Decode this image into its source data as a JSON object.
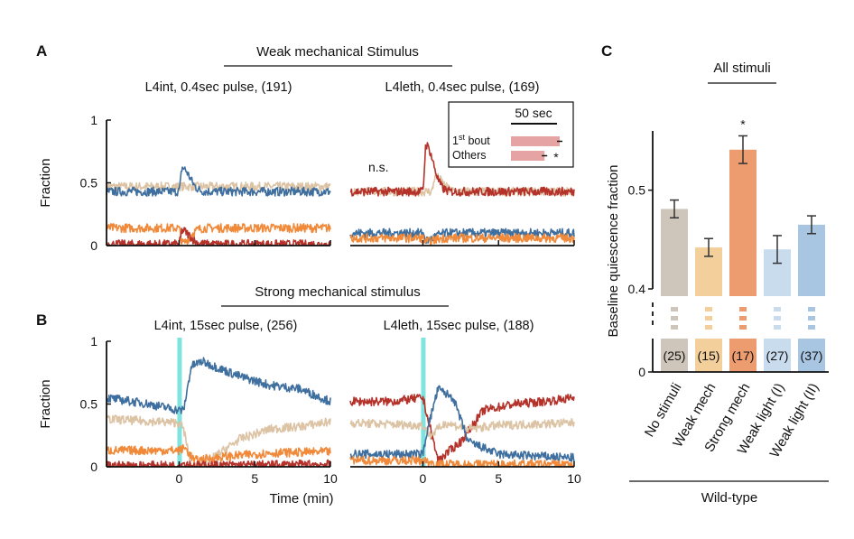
{
  "panel_letters": [
    "A",
    "B",
    "C"
  ],
  "headers": {
    "weak": "Weak mechanical Stimulus",
    "strong": "Strong mechanical stimulus",
    "all": "All stimuli"
  },
  "colors": {
    "wake": "#3f6f9e",
    "lethargus_sleep": "#b5322a",
    "tan": "#dcc3a4",
    "orange": "#f08a3a",
    "stim": "#7fe3df",
    "bars": [
      "#cfc6bb",
      "#f3cf9b",
      "#ec9c6f",
      "#c9dcee",
      "#a8c6e2"
    ]
  },
  "chart_data": [
    {
      "type": "line",
      "panel": "A",
      "title": "L4int, 0.4sec pulse, (191)",
      "ylabel": "Fraction",
      "xlabel": "",
      "xlim": [
        -4.8,
        10
      ],
      "ylim": [
        0,
        1
      ],
      "yticks": [
        "0",
        "0.5",
        "1"
      ],
      "xticks": [],
      "series": [
        {
          "color": "tan",
          "baseline": 0.47,
          "peak": [
            0.2,
            0.47
          ]
        },
        {
          "color": "wake",
          "baseline": 0.43,
          "peak": [
            0.2,
            0.62
          ]
        },
        {
          "color": "orange",
          "baseline": 0.14,
          "peak": [
            0.2,
            0.02
          ]
        },
        {
          "color": "lethargus_sleep",
          "baseline": 0.01,
          "peak": [
            0.2,
            0.12
          ]
        }
      ]
    },
    {
      "type": "line",
      "panel": "A",
      "title": "L4leth, 0.4sec pulse, (169)",
      "ylabel": "",
      "xlabel": "",
      "xlim": [
        -4.8,
        10
      ],
      "ylim": [
        0,
        1
      ],
      "yticks": [],
      "xticks": [],
      "annotation": "n.s.",
      "inset": {
        "scale_label": "50 sec",
        "rows": [
          {
            "label": "1st bout",
            "label_main": "1",
            "label_sup": "st",
            "label_rest": " bout",
            "value": 0.9,
            "sig": ""
          },
          {
            "label": "Others",
            "value": 0.62,
            "sig": "*"
          }
        ]
      },
      "series": [
        {
          "color": "tan",
          "baseline": 0.43,
          "peak": [
            0.8,
            0.55
          ]
        },
        {
          "color": "lethargus_sleep",
          "baseline": 0.43,
          "peak": [
            0.2,
            0.8
          ]
        },
        {
          "color": "wake",
          "baseline": 0.1,
          "peak": [
            0.2,
            0.04
          ]
        },
        {
          "color": "orange",
          "baseline": 0.06,
          "peak": [
            0.2,
            0.03
          ]
        }
      ]
    },
    {
      "type": "line",
      "panel": "B",
      "title": "L4int, 15sec pulse, (256)",
      "ylabel": "Fraction",
      "xlabel": "",
      "xlim": [
        -4.8,
        10
      ],
      "ylim": [
        0,
        1
      ],
      "yticks": [
        "0",
        "0.5",
        "1"
      ],
      "xticks": [
        "0",
        "5",
        "10"
      ],
      "stimulus_minutes": [
        0,
        0.25
      ],
      "series": [
        {
          "color": "wake",
          "points": [
            [
              -4.8,
              0.55
            ],
            [
              -2,
              0.5
            ],
            [
              0,
              0.45
            ],
            [
              0.3,
              0.45
            ],
            [
              0.8,
              0.8
            ],
            [
              1.5,
              0.84
            ],
            [
              4,
              0.72
            ],
            [
              6,
              0.65
            ],
            [
              8,
              0.62
            ],
            [
              10,
              0.52
            ]
          ]
        },
        {
          "color": "tan",
          "points": [
            [
              -4.8,
              0.38
            ],
            [
              0,
              0.35
            ],
            [
              0.3,
              0.3
            ],
            [
              0.8,
              0.0
            ],
            [
              2,
              0.05
            ],
            [
              4,
              0.22
            ],
            [
              6,
              0.3
            ],
            [
              8,
              0.32
            ],
            [
              10,
              0.36
            ]
          ]
        },
        {
          "color": "orange",
          "points": [
            [
              -4.8,
              0.13
            ],
            [
              0,
              0.13
            ],
            [
              0.4,
              0.15
            ],
            [
              1,
              0.05
            ],
            [
              3,
              0.08
            ],
            [
              6,
              0.11
            ],
            [
              10,
              0.12
            ]
          ]
        },
        {
          "color": "lethargus_sleep",
          "points": [
            [
              -4.8,
              0.01
            ],
            [
              0,
              0.01
            ],
            [
              0.3,
              0.03
            ],
            [
              1,
              0.01
            ],
            [
              10,
              0.02
            ]
          ]
        }
      ]
    },
    {
      "type": "line",
      "panel": "B",
      "title": "L4leth, 15sec pulse, (188)",
      "ylabel": "",
      "xlabel": "Time (min)",
      "xlim": [
        -4.8,
        10
      ],
      "ylim": [
        0,
        1
      ],
      "yticks": [],
      "xticks": [
        "0",
        "5",
        "10"
      ],
      "stimulus_minutes": [
        0,
        0.25
      ],
      "series": [
        {
          "color": "lethargus_sleep",
          "points": [
            [
              -4.8,
              0.52
            ],
            [
              -2,
              0.52
            ],
            [
              0,
              0.55
            ],
            [
              0.3,
              0.4
            ],
            [
              1,
              0.05
            ],
            [
              2.5,
              0.2
            ],
            [
              4,
              0.45
            ],
            [
              6,
              0.5
            ],
            [
              8,
              0.52
            ],
            [
              10,
              0.55
            ]
          ]
        },
        {
          "color": "tan",
          "points": [
            [
              -4.8,
              0.35
            ],
            [
              0,
              0.33
            ],
            [
              0.5,
              0.25
            ],
            [
              1.5,
              0.35
            ],
            [
              3,
              0.3
            ],
            [
              5,
              0.33
            ],
            [
              10,
              0.35
            ]
          ]
        },
        {
          "color": "wake",
          "points": [
            [
              -4.8,
              0.1
            ],
            [
              0,
              0.1
            ],
            [
              0.3,
              0.3
            ],
            [
              1,
              0.62
            ],
            [
              2,
              0.55
            ],
            [
              3,
              0.2
            ],
            [
              5,
              0.1
            ],
            [
              10,
              0.07
            ]
          ]
        },
        {
          "color": "orange",
          "points": [
            [
              -4.8,
              0.05
            ],
            [
              0,
              0.05
            ],
            [
              1,
              0.02
            ],
            [
              10,
              0.02
            ]
          ]
        }
      ]
    },
    {
      "type": "bar",
      "panel": "C",
      "title": "All stimuli",
      "ylabel": "Baseline quiescence fraction",
      "xlabel": "Wild-type",
      "categories": [
        "No stimuli",
        "Weak mech",
        "Strong mech",
        "Weak light (I)",
        "Weak light (II)"
      ],
      "values": [
        0.481,
        0.442,
        0.541,
        0.44,
        0.465
      ],
      "errors": [
        0.009,
        0.009,
        0.014,
        0.014,
        0.009
      ],
      "n_labels": [
        "(25)",
        "(15)",
        "(17)",
        "(27)",
        "(37)"
      ],
      "significance": [
        "",
        "",
        "*",
        "",
        ""
      ],
      "ylim": [
        0,
        0.56
      ],
      "yticks": [
        "0",
        "0.4",
        "0.5"
      ],
      "axis_break": [
        0.015,
        0.4
      ]
    }
  ]
}
